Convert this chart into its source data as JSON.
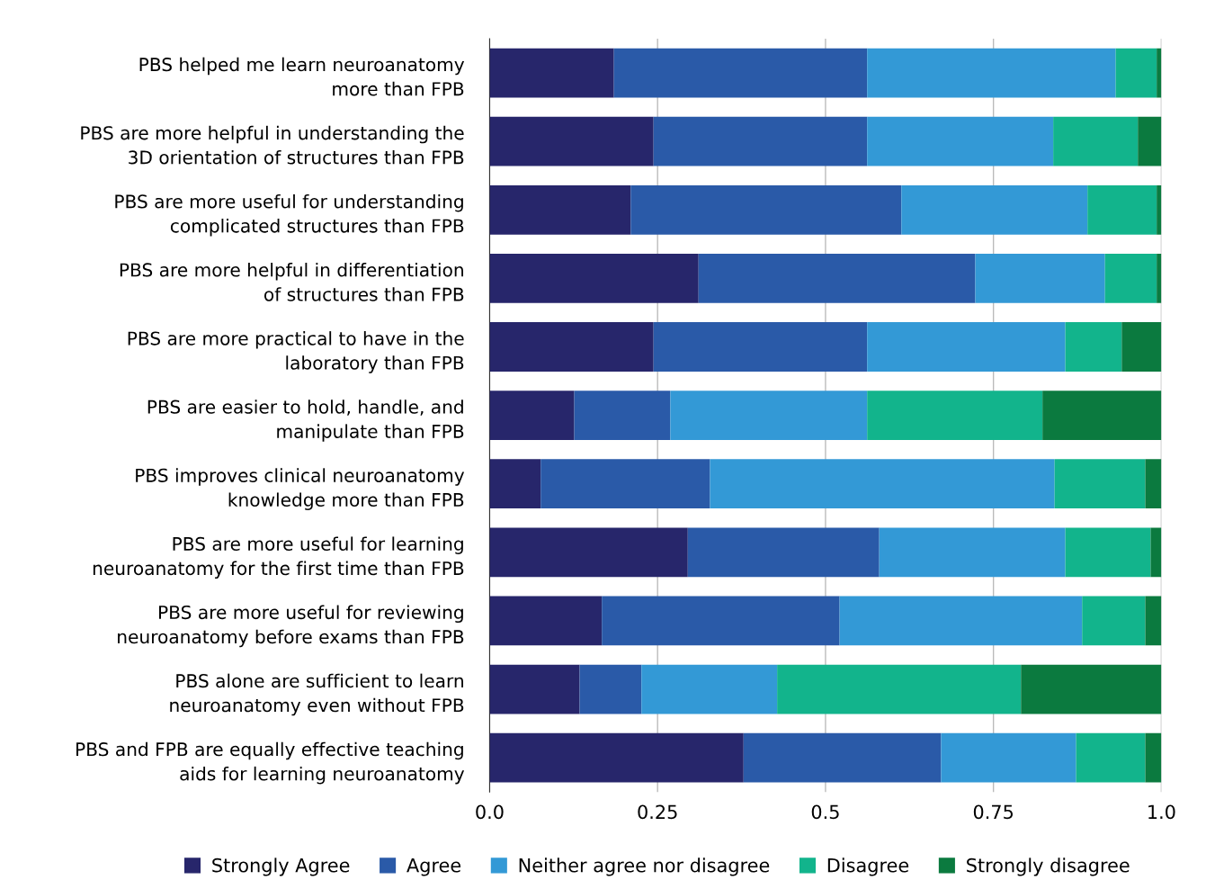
{
  "chart_data": {
    "type": "bar",
    "orientation": "horizontal",
    "stacked": true,
    "categories": [
      "PBS helped me learn neuroanatomy\nmore than FPB",
      "PBS are more helpful in understanding the\n3D orientation of structures than FPB",
      "PBS are more useful for understanding\ncomplicated structures than FPB",
      "PBS are more helpful in differentiation\nof structures than FPB",
      "PBS are more practical to have in the\nlaboratory than FPB",
      "PBS are easier to hold, handle, and\nmanipulate than FPB",
      "PBS improves clinical neuroanatomy\nknowledge more than FPB",
      "PBS are more useful for learning\nneuroanatomy for the first time than FPB",
      "PBS are more useful for reviewing\nneuroanatomy before exams than FPB",
      "PBS alone are sufficient to learn\nneuroanatomy even without FPB",
      "PBS and FPB are equally effective teaching\naids for learning neuroanatomy"
    ],
    "series": [
      {
        "name": "Strongly Agree",
        "color": "#27266b",
        "values": [
          0.185,
          0.244,
          0.21,
          0.311,
          0.244,
          0.126,
          0.076,
          0.295,
          0.167,
          0.134,
          0.378
        ]
      },
      {
        "name": "Agree",
        "color": "#2a5aa8",
        "values": [
          0.377,
          0.318,
          0.403,
          0.412,
          0.318,
          0.143,
          0.252,
          0.285,
          0.354,
          0.092,
          0.294
        ]
      },
      {
        "name": "Neither agree nor disagree",
        "color": "#3399d6",
        "values": [
          0.37,
          0.277,
          0.277,
          0.193,
          0.295,
          0.293,
          0.513,
          0.277,
          0.361,
          0.202,
          0.201
        ]
      },
      {
        "name": "Disagree",
        "color": "#12b48c",
        "values": [
          0.061,
          0.126,
          0.103,
          0.077,
          0.084,
          0.261,
          0.135,
          0.127,
          0.094,
          0.363,
          0.103
        ]
      },
      {
        "name": "Strongly disagree",
        "color": "#0b7a3f",
        "values": [
          0.007,
          0.035,
          0.007,
          0.007,
          0.059,
          0.177,
          0.024,
          0.016,
          0.024,
          0.209,
          0.024
        ]
      }
    ],
    "xlim": [
      0,
      1
    ],
    "xticks": [
      {
        "value": 0,
        "label": "0.0"
      },
      0.25,
      0.5,
      0.75,
      {
        "value": 1,
        "label": "1.0"
      }
    ],
    "grid": "x",
    "legend": "bottom"
  }
}
